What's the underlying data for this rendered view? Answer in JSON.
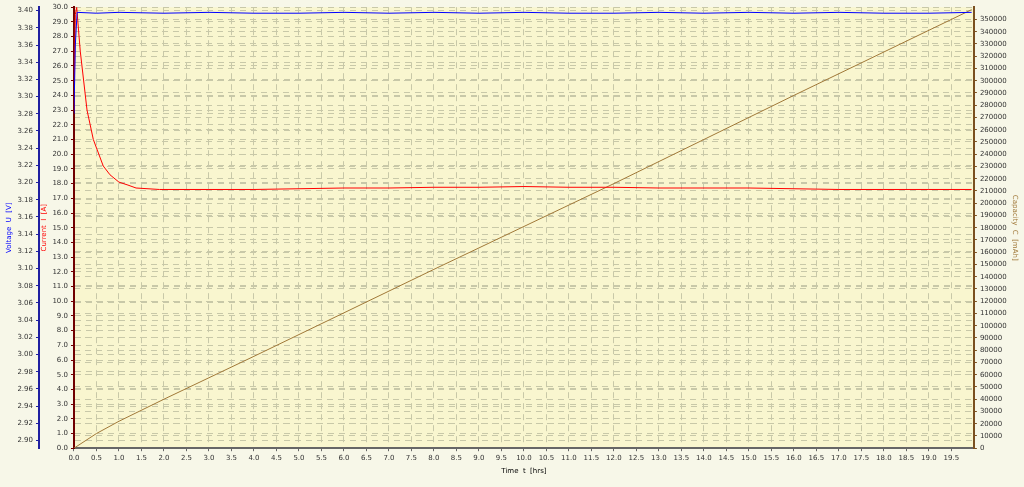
{
  "chart_data": {
    "type": "line",
    "xlabel": "Time  t  [hrs]",
    "ylabel": "Current  I  [A]",
    "y2label": "Voltage  U  [V]",
    "y3label": "Capacity  C  [mAh]",
    "x": [
      0,
      0.5,
      1,
      2,
      4,
      8,
      12,
      16,
      19.95
    ],
    "xlim": [
      0,
      20
    ],
    "xticks": [
      {
        "value": 0,
        "label": "0.0"
      },
      {
        "value": 0.5,
        "label": "0.5"
      },
      {
        "value": 1,
        "label": "1.0"
      },
      {
        "value": 1.5,
        "label": "1.5"
      },
      {
        "value": 2,
        "label": "2.0"
      },
      {
        "value": 2.5,
        "label": "2.5"
      },
      {
        "value": 3,
        "label": "3.0"
      },
      {
        "value": 3.5,
        "label": "3.5"
      },
      {
        "value": 4,
        "label": "4.0"
      },
      {
        "value": 4.5,
        "label": "4.5"
      },
      {
        "value": 5,
        "label": "5.0"
      },
      {
        "value": 5.5,
        "label": "5.5"
      },
      {
        "value": 6,
        "label": "6.0"
      },
      {
        "value": 6.5,
        "label": "6.5"
      },
      {
        "value": 7,
        "label": "7.0"
      },
      {
        "value": 7.5,
        "label": "7.5"
      },
      {
        "value": 8,
        "label": "8.0"
      },
      {
        "value": 8.5,
        "label": "8.5"
      },
      {
        "value": 9,
        "label": "9.0"
      },
      {
        "value": 9.5,
        "label": "9.5"
      },
      {
        "value": 10,
        "label": "10.0"
      },
      {
        "value": 10.5,
        "label": "10.5"
      },
      {
        "value": 11,
        "label": "11.0"
      },
      {
        "value": 11.5,
        "label": "11.5"
      },
      {
        "value": 12,
        "label": "12.0"
      },
      {
        "value": 12.5,
        "label": "12.5"
      },
      {
        "value": 13,
        "label": "13.0"
      },
      {
        "value": 13.5,
        "label": "13.5"
      },
      {
        "value": 14,
        "label": "14.0"
      },
      {
        "value": 14.5,
        "label": "14.5"
      },
      {
        "value": 15,
        "label": "15.0"
      },
      {
        "value": 15.5,
        "label": "15.5"
      },
      {
        "value": 16,
        "label": "16.0"
      },
      {
        "value": 16.5,
        "label": "16.5"
      },
      {
        "value": 17,
        "label": "17.0"
      },
      {
        "value": 17.5,
        "label": "17.5"
      },
      {
        "value": 18,
        "label": "18.0"
      },
      {
        "value": 18.5,
        "label": "18.5"
      },
      {
        "value": 19,
        "label": "19.0"
      },
      {
        "value": 19.5,
        "label": "19.5"
      }
    ],
    "ylim": [
      0,
      30
    ],
    "yticks": [
      {
        "value": 0,
        "label": "0.0"
      },
      {
        "value": 1,
        "label": "1.0"
      },
      {
        "value": 2,
        "label": "2.0"
      },
      {
        "value": 3,
        "label": "3.0"
      },
      {
        "value": 4,
        "label": "4.0"
      },
      {
        "value": 5,
        "label": "5.0"
      },
      {
        "value": 6,
        "label": "6.0"
      },
      {
        "value": 7,
        "label": "7.0"
      },
      {
        "value": 8,
        "label": "8.0"
      },
      {
        "value": 9,
        "label": "9.0"
      },
      {
        "value": 10,
        "label": "10.0"
      },
      {
        "value": 11,
        "label": "11.0"
      },
      {
        "value": 12,
        "label": "12.0"
      },
      {
        "value": 13,
        "label": "13.0"
      },
      {
        "value": 14,
        "label": "14.0"
      },
      {
        "value": 15,
        "label": "15.0"
      },
      {
        "value": 16,
        "label": "16.0"
      },
      {
        "value": 17,
        "label": "17.0"
      },
      {
        "value": 18,
        "label": "18.0"
      },
      {
        "value": 19,
        "label": "19.0"
      },
      {
        "value": 20,
        "label": "20.0"
      },
      {
        "value": 21,
        "label": "21.0"
      },
      {
        "value": 22,
        "label": "22.0"
      },
      {
        "value": 23,
        "label": "23.0"
      },
      {
        "value": 24,
        "label": "24.0"
      },
      {
        "value": 25,
        "label": "25.0"
      },
      {
        "value": 26,
        "label": "26.0"
      },
      {
        "value": 27,
        "label": "27.0"
      },
      {
        "value": 28,
        "label": "28.0"
      },
      {
        "value": 29,
        "label": "29.0"
      },
      {
        "value": 30,
        "label": "30.0"
      }
    ],
    "y2lim": [
      2.891,
      3.404
    ],
    "y2ticks": [
      {
        "value": 2.9,
        "label": "2.90"
      },
      2.92,
      2.94,
      2.96,
      2.98,
      {
        "value": 3,
        "label": "3.00"
      },
      3.02,
      3.04,
      3.06,
      3.08,
      {
        "value": 3.1,
        "label": "3.10"
      },
      3.12,
      3.14,
      3.16,
      3.18,
      {
        "value": 3.2,
        "label": "3.20"
      },
      3.22,
      3.24,
      3.26,
      3.28,
      {
        "value": 3.3,
        "label": "3.30"
      },
      3.32,
      3.34,
      3.36,
      3.38,
      {
        "value": 3.4,
        "label": "3.40"
      }
    ],
    "y3lim": [
      0,
      360000
    ],
    "y3ticks": [
      0,
      10000,
      20000,
      30000,
      40000,
      50000,
      60000,
      70000,
      80000,
      90000,
      100000,
      110000,
      120000,
      130000,
      140000,
      150000,
      160000,
      170000,
      180000,
      190000,
      200000,
      210000,
      220000,
      230000,
      240000,
      250000,
      260000,
      270000,
      280000,
      290000,
      300000,
      310000,
      320000,
      330000,
      340000,
      350000
    ],
    "grid": true,
    "line_style": "solid",
    "marker": "none",
    "series": [
      {
        "color": "#0000ff",
        "axis": "y2",
        "x": [
          0,
          0.03,
          0.07,
          0.5,
          1,
          2,
          3,
          4,
          5,
          6,
          7,
          8,
          9,
          10,
          11,
          12,
          13,
          14,
          15,
          16,
          17,
          18,
          19,
          19.95
        ],
        "values": [
          3.28,
          3.36,
          3.398,
          3.397,
          3.398,
          3.397,
          3.398,
          3.397,
          3.397,
          3.398,
          3.397,
          3.398,
          3.397,
          3.398,
          3.397,
          3.397,
          3.398,
          3.397,
          3.398,
          3.397,
          3.398,
          3.397,
          3.397,
          3.398
        ]
      },
      {
        "color": "#ff0000",
        "axis": "y",
        "x": [
          0,
          0.03,
          0.06,
          0.14,
          0.29,
          0.43,
          0.65,
          0.8,
          1.0,
          1.2,
          1.38,
          1.9,
          3,
          4,
          5,
          6,
          7,
          8,
          9,
          10,
          11,
          12,
          13,
          14,
          15,
          16,
          17,
          18,
          19,
          19.95
        ],
        "values": [
          23,
          29.5,
          30,
          27,
          23,
          21,
          19.2,
          18.6,
          18.1,
          17.9,
          17.7,
          17.6,
          17.6,
          17.6,
          17.65,
          17.7,
          17.7,
          17.75,
          17.75,
          17.8,
          17.75,
          17.75,
          17.7,
          17.7,
          17.7,
          17.65,
          17.6,
          17.6,
          17.6,
          17.6
        ]
      },
      {
        "color": "#a07838",
        "axis": "y3",
        "values": [
          0,
          12000,
          22000,
          40000,
          75000,
          146000,
          216000,
          288000,
          358000
        ]
      }
    ]
  }
}
